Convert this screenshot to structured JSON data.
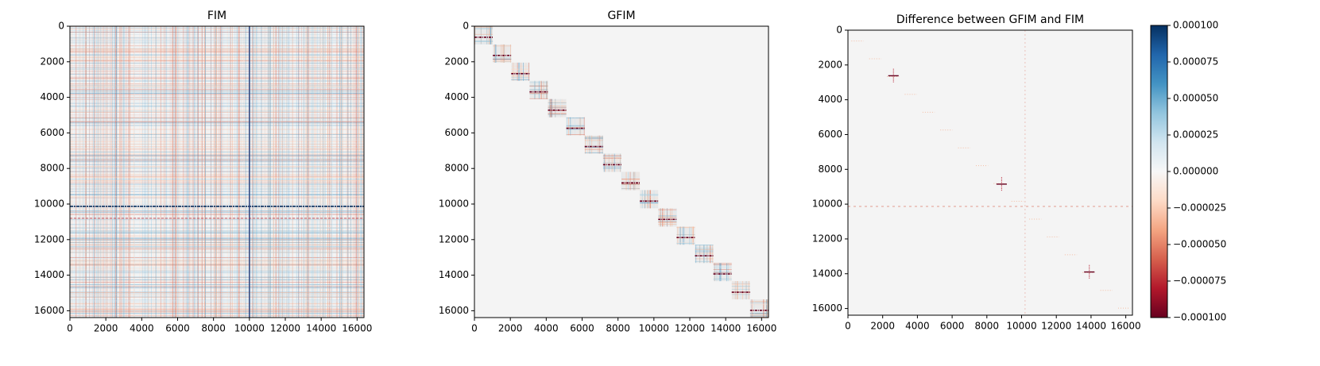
{
  "chart_data": [
    {
      "type": "heatmap",
      "title": "FIM",
      "xlim": [
        0,
        16384
      ],
      "ylim": [
        16384,
        0
      ],
      "xticks": [
        0,
        2000,
        4000,
        6000,
        8000,
        10000,
        12000,
        14000,
        16000
      ],
      "yticks": [
        0,
        2000,
        4000,
        6000,
        8000,
        10000,
        12000,
        14000,
        16000
      ]
    },
    {
      "type": "heatmap",
      "title": "GFIM",
      "xlim": [
        0,
        16384
      ],
      "ylim": [
        16384,
        0
      ],
      "xticks": [
        0,
        2000,
        4000,
        6000,
        8000,
        10000,
        12000,
        14000,
        16000
      ],
      "yticks": [
        0,
        2000,
        4000,
        6000,
        8000,
        10000,
        12000,
        14000,
        16000
      ]
    },
    {
      "type": "heatmap",
      "title": "Difference between GFIM and FIM",
      "xlim": [
        0,
        16384
      ],
      "ylim": [
        16384,
        0
      ],
      "xticks": [
        0,
        2000,
        4000,
        6000,
        8000,
        10000,
        12000,
        14000,
        16000
      ],
      "yticks": [
        0,
        2000,
        4000,
        6000,
        8000,
        10000,
        12000,
        14000,
        16000
      ],
      "colorbar": {
        "lim": [
          -0.0001,
          0.0001
        ],
        "ticks": [
          {
            "value": 0.0001,
            "label": "0.000100"
          },
          {
            "value": 7.5e-05,
            "label": "0.000075"
          },
          {
            "value": 5e-05,
            "label": "0.000050"
          },
          {
            "value": 2.5e-05,
            "label": "0.000025"
          },
          {
            "value": 0,
            "label": "0.000000"
          },
          {
            "value": -2.5e-05,
            "label": "−0.000025"
          },
          {
            "value": -5e-05,
            "label": "−0.000050"
          },
          {
            "value": -7.5e-05,
            "label": "−0.000075"
          },
          {
            "value": -0.0001,
            "label": "−0.000100"
          }
        ],
        "colors": [
          "#67001f",
          "#b2182b",
          "#d6604d",
          "#f4a582",
          "#fddbc7",
          "#f7f7f7",
          "#d1e5f0",
          "#92c5de",
          "#4393c3",
          "#2166ac",
          "#053061"
        ]
      }
    }
  ]
}
